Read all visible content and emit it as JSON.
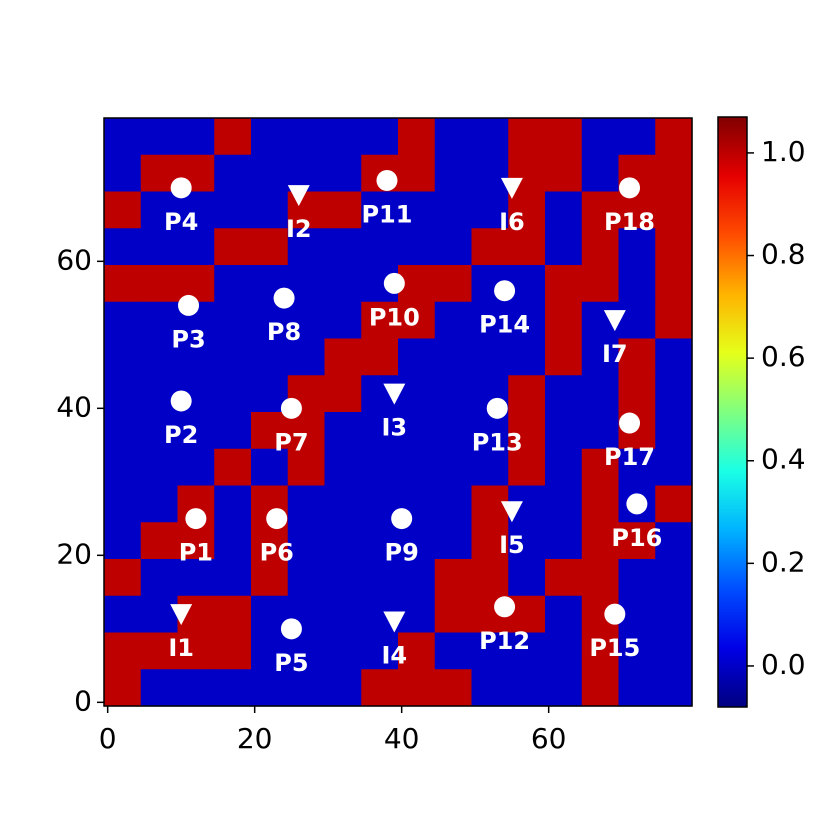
{
  "chart_data": {
    "type": "heatmap",
    "xlim": [
      -0.5,
      79.5
    ],
    "ylim": [
      -0.5,
      79.5
    ],
    "xticks": [
      0,
      20,
      40,
      60
    ],
    "yticks": [
      0,
      20,
      40,
      60
    ],
    "colormap": "jet",
    "clim": [
      -0.08,
      1.07
    ],
    "cticks": [
      {
        "value": 0,
        "label": "0.0"
      },
      0.2,
      0.4,
      0.6,
      0.8,
      {
        "value": 1,
        "label": "1.0"
      }
    ],
    "z": [
      [
        0,
        0,
        0,
        1,
        0,
        0,
        0,
        0,
        1,
        0,
        0,
        1,
        1,
        0,
        0,
        1
      ],
      [
        0,
        1,
        1,
        0,
        0,
        0,
        0,
        1,
        1,
        0,
        0,
        1,
        1,
        0,
        1,
        1
      ],
      [
        1,
        0,
        0,
        0,
        0,
        1,
        1,
        0,
        0,
        0,
        0,
        1,
        0,
        1,
        1,
        1
      ],
      [
        0,
        0,
        0,
        1,
        1,
        0,
        0,
        0,
        0,
        0,
        1,
        1,
        0,
        1,
        0,
        1
      ],
      [
        1,
        1,
        1,
        0,
        0,
        0,
        0,
        0,
        1,
        1,
        0,
        0,
        1,
        1,
        0,
        1
      ],
      [
        0,
        0,
        0,
        0,
        0,
        0,
        0,
        1,
        1,
        0,
        0,
        0,
        1,
        0,
        0,
        1
      ],
      [
        0,
        0,
        0,
        0,
        0,
        0,
        1,
        1,
        0,
        0,
        0,
        0,
        1,
        0,
        1,
        0
      ],
      [
        0,
        0,
        0,
        0,
        0,
        1,
        1,
        0,
        0,
        0,
        0,
        1,
        0,
        0,
        1,
        0
      ],
      [
        0,
        0,
        0,
        0,
        1,
        1,
        0,
        0,
        0,
        0,
        0,
        1,
        0,
        0,
        1,
        0
      ],
      [
        0,
        0,
        0,
        1,
        0,
        1,
        0,
        0,
        0,
        0,
        0,
        1,
        0,
        1,
        0,
        0
      ],
      [
        0,
        0,
        1,
        0,
        1,
        0,
        0,
        0,
        0,
        0,
        1,
        0,
        0,
        1,
        0,
        1
      ],
      [
        0,
        1,
        1,
        0,
        1,
        0,
        0,
        0,
        0,
        0,
        1,
        0,
        0,
        1,
        1,
        0
      ],
      [
        1,
        0,
        0,
        0,
        1,
        0,
        0,
        0,
        0,
        1,
        1,
        0,
        1,
        1,
        0,
        0
      ],
      [
        0,
        0,
        1,
        1,
        0,
        0,
        0,
        0,
        0,
        1,
        1,
        1,
        0,
        1,
        0,
        0
      ],
      [
        1,
        1,
        1,
        1,
        0,
        0,
        0,
        0,
        1,
        0,
        0,
        0,
        0,
        1,
        0,
        0
      ],
      [
        1,
        0,
        0,
        0,
        0,
        0,
        0,
        1,
        1,
        1,
        0,
        0,
        0,
        1,
        0,
        0
      ]
    ],
    "series": [
      {
        "marker": "circle",
        "color": "#ffffff",
        "labels": [
          "P1",
          "P2",
          "P3",
          "P4",
          "P5",
          "P6",
          "P7",
          "P8",
          "P9",
          "P10",
          "P11",
          "P12",
          "P13",
          "P14",
          "P15",
          "P16",
          "P17",
          "P18"
        ],
        "x": [
          12,
          10,
          11,
          10,
          25,
          23,
          25,
          24,
          40,
          39,
          38,
          54,
          53,
          54,
          69,
          72,
          71,
          71
        ],
        "y": [
          25,
          41,
          54,
          70,
          10,
          25,
          40,
          55,
          25,
          57,
          71,
          13,
          40,
          56,
          12,
          27,
          38,
          70
        ]
      },
      {
        "marker": "triangle-down",
        "color": "#ffffff",
        "labels": [
          "I1",
          "I2",
          "I3",
          "I4",
          "I5",
          "I6",
          "I7"
        ],
        "x": [
          10,
          26,
          39,
          39,
          55,
          55,
          69
        ],
        "y": [
          12,
          69,
          42,
          11,
          26,
          70,
          52
        ]
      }
    ]
  }
}
